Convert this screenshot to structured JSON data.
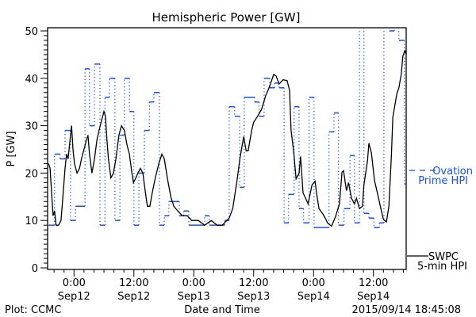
{
  "chart_data": {
    "type": "line",
    "title": "Hemispheric Power [GW]",
    "xlabel": "Date and Time",
    "ylabel": "P [GW]",
    "x_units": "hours since 2015-09-12 00:00",
    "xlim": [
      -5.1,
      66.6
    ],
    "ylim": [
      0,
      50
    ],
    "y_ticks": [
      "0",
      "10",
      "20",
      "30",
      "40",
      "50"
    ],
    "y_tick_values": [
      0,
      10,
      20,
      30,
      40,
      50
    ],
    "x_ticks": [
      {
        "h": 0,
        "time": "0:00",
        "date": "Sep12"
      },
      {
        "h": 12,
        "time": "12:00",
        "date": "Sep12"
      },
      {
        "h": 24,
        "time": "0:00",
        "date": "Sep13"
      },
      {
        "h": 36,
        "time": "12:00",
        "date": "Sep13"
      },
      {
        "h": 48,
        "time": "0:00",
        "date": "Sep14"
      },
      {
        "h": 60,
        "time": "12:00",
        "date": "Sep14"
      }
    ],
    "minor_x_tick_step_hours": 2,
    "grid": false,
    "colors": {
      "swpc": "#000000",
      "ovation": "#1a4fe6"
    },
    "legend": {
      "placement": "right",
      "ovation": [
        "Ovation",
        "Prime HPI"
      ],
      "swpc": [
        "SWPC",
        "5-min HPI"
      ]
    },
    "series": [
      {
        "name": "SWPC 5-min HPI",
        "style": "solid",
        "points": [
          [
            -5.1,
            22
          ],
          [
            -4.8,
            21
          ],
          [
            -4.5,
            16
          ],
          [
            -4.2,
            11
          ],
          [
            -3.9,
            12
          ],
          [
            -3.6,
            9
          ],
          [
            -3.1,
            9
          ],
          [
            -2.6,
            10
          ],
          [
            -2.3,
            14
          ],
          [
            -1.8,
            21
          ],
          [
            -1.5,
            24
          ],
          [
            -1.2,
            23
          ],
          [
            -0.8,
            27
          ],
          [
            -0.5,
            30
          ],
          [
            -0.2,
            25
          ],
          [
            0.1,
            22
          ],
          [
            0.6,
            20
          ],
          [
            1.1,
            21
          ],
          [
            1.5,
            23
          ],
          [
            2.0,
            25
          ],
          [
            2.5,
            27
          ],
          [
            2.8,
            28
          ],
          [
            3.1,
            24
          ],
          [
            3.6,
            20
          ],
          [
            4.1,
            23
          ],
          [
            4.6,
            27
          ],
          [
            5.0,
            29
          ],
          [
            5.5,
            31
          ],
          [
            6.0,
            33
          ],
          [
            6.3,
            32
          ],
          [
            6.6,
            27
          ],
          [
            6.9,
            23
          ],
          [
            7.4,
            19
          ],
          [
            7.9,
            20
          ],
          [
            8.4,
            23
          ],
          [
            9.0,
            28
          ],
          [
            9.5,
            30
          ],
          [
            10.1,
            29
          ],
          [
            10.6,
            26
          ],
          [
            11.1,
            24
          ],
          [
            11.6,
            20
          ],
          [
            11.9,
            18
          ],
          [
            12.4,
            19
          ],
          [
            12.8,
            20
          ],
          [
            13.3,
            21
          ],
          [
            13.8,
            20
          ],
          [
            14.3,
            16
          ],
          [
            14.7,
            13
          ],
          [
            15.2,
            13
          ],
          [
            15.7,
            16
          ],
          [
            16.3,
            19
          ],
          [
            17.0,
            22
          ],
          [
            17.6,
            24
          ],
          [
            18.1,
            23
          ],
          [
            18.7,
            19
          ],
          [
            19.4,
            15
          ],
          [
            20.0,
            13
          ],
          [
            20.8,
            12
          ],
          [
            21.7,
            11
          ],
          [
            22.7,
            11
          ],
          [
            23.6,
            10
          ],
          [
            24.9,
            10
          ],
          [
            26.2,
            9
          ],
          [
            27.5,
            10
          ],
          [
            28.7,
            9
          ],
          [
            29.7,
            9
          ],
          [
            31.1,
            10.5
          ],
          [
            31.8,
            12.5
          ],
          [
            32.6,
            18
          ],
          [
            33.3,
            23.5
          ],
          [
            34.0,
            27.7
          ],
          [
            34.5,
            24.7
          ],
          [
            34.9,
            24.7
          ],
          [
            35.6,
            29
          ],
          [
            36.0,
            30.7
          ],
          [
            36.8,
            32
          ],
          [
            37.6,
            33.5
          ],
          [
            38.4,
            36.3
          ],
          [
            39.2,
            38.3
          ],
          [
            40.0,
            40.8
          ],
          [
            40.5,
            40.5
          ],
          [
            41.1,
            38.8
          ],
          [
            41.9,
            39.7
          ],
          [
            42.7,
            39.5
          ],
          [
            43.2,
            37.5
          ],
          [
            43.5,
            29
          ],
          [
            44.0,
            24.7
          ],
          [
            44.5,
            18.8
          ],
          [
            45.1,
            20
          ],
          [
            45.4,
            23.5
          ],
          [
            45.9,
            15.8
          ],
          [
            46.4,
            14.7
          ],
          [
            46.9,
            13.5
          ],
          [
            47.7,
            17.5
          ],
          [
            48.3,
            18.3
          ],
          [
            48.6,
            15.8
          ],
          [
            49.1,
            12.5
          ],
          [
            49.9,
            11.3
          ],
          [
            50.5,
            10.2
          ],
          [
            50.8,
            9.5
          ],
          [
            51.6,
            8.8
          ],
          [
            52.4,
            10.8
          ],
          [
            53.2,
            13.5
          ],
          [
            53.7,
            20.2
          ],
          [
            54.0,
            20.5
          ],
          [
            54.6,
            16.3
          ],
          [
            55.0,
            18
          ],
          [
            55.6,
            14.7
          ],
          [
            56.2,
            13.5
          ],
          [
            56.6,
            14.7
          ],
          [
            57.2,
            12.5
          ],
          [
            57.8,
            13
          ],
          [
            58.1,
            17.5
          ],
          [
            58.8,
            22.5
          ],
          [
            59.1,
            26.3
          ],
          [
            59.6,
            24.2
          ],
          [
            60.2,
            18.5
          ],
          [
            60.8,
            15.8
          ],
          [
            61.5,
            12.5
          ],
          [
            62.0,
            10.2
          ],
          [
            62.6,
            9.7
          ],
          [
            63.1,
            13
          ],
          [
            63.6,
            23.5
          ],
          [
            63.9,
            31.8
          ],
          [
            64.7,
            36.8
          ],
          [
            65.1,
            38
          ],
          [
            65.6,
            41
          ],
          [
            65.9,
            44.7
          ],
          [
            66.3,
            45.8
          ],
          [
            66.6,
            45
          ]
        ]
      },
      {
        "name": "Ovation Prime HPI",
        "style": "step-dashed",
        "steps": [
          [
            -5.1,
            -3.9,
            9
          ],
          [
            -3.9,
            -2.8,
            24
          ],
          [
            -2.8,
            -1.8,
            23
          ],
          [
            -1.8,
            -0.7,
            29
          ],
          [
            -0.7,
            0.3,
            10
          ],
          [
            0.3,
            2.2,
            13
          ],
          [
            2.2,
            3.1,
            42
          ],
          [
            3.1,
            4.1,
            30
          ],
          [
            4.1,
            5.2,
            43
          ],
          [
            5.2,
            6.2,
            9
          ],
          [
            6.2,
            7.1,
            36
          ],
          [
            7.1,
            8.2,
            40
          ],
          [
            8.2,
            9.2,
            10
          ],
          [
            9.2,
            10.1,
            28
          ],
          [
            10.1,
            11.1,
            40
          ],
          [
            11.1,
            12.0,
            33
          ],
          [
            12.0,
            13.0,
            9
          ],
          [
            13.0,
            14.1,
            20
          ],
          [
            14.1,
            15.1,
            29
          ],
          [
            15.1,
            16.0,
            35
          ],
          [
            16.0,
            17.1,
            37
          ],
          [
            17.1,
            18.1,
            9
          ],
          [
            18.1,
            19.0,
            11
          ],
          [
            19.0,
            21.1,
            14
          ],
          [
            21.1,
            22.0,
            11
          ],
          [
            22.0,
            23.0,
            12
          ],
          [
            23.0,
            26.2,
            9
          ],
          [
            26.2,
            27.1,
            11
          ],
          [
            27.1,
            30.2,
            9
          ],
          [
            30.2,
            31.1,
            10
          ],
          [
            31.1,
            32.2,
            34
          ],
          [
            32.2,
            33.2,
            32
          ],
          [
            33.2,
            34.1,
            17
          ],
          [
            34.1,
            36.2,
            36
          ],
          [
            36.2,
            37.1,
            35
          ],
          [
            37.1,
            38.1,
            32
          ],
          [
            38.1,
            39.2,
            40
          ],
          [
            39.2,
            40.2,
            38
          ],
          [
            40.2,
            41.1,
            39
          ],
          [
            41.1,
            42.1,
            38
          ],
          [
            42.1,
            43.0,
            9.5
          ],
          [
            43.0,
            44.1,
            15.5
          ],
          [
            44.1,
            45.1,
            34
          ],
          [
            45.1,
            46.0,
            12.5
          ],
          [
            46.0,
            47.1,
            9.5
          ],
          [
            47.1,
            48.1,
            36
          ],
          [
            48.1,
            51.1,
            8.5
          ],
          [
            51.1,
            52.1,
            28.7
          ],
          [
            52.1,
            53.0,
            32.7
          ],
          [
            53.0,
            54.1,
            9
          ],
          [
            54.1,
            55.3,
            12.5
          ],
          [
            55.3,
            56.2,
            23.7
          ],
          [
            56.2,
            57.2,
            9.5
          ],
          [
            57.2,
            58.1,
            55
          ],
          [
            58.1,
            59.1,
            11.5
          ],
          [
            59.1,
            60.1,
            10.5
          ],
          [
            60.1,
            61.2,
            8.5
          ],
          [
            61.2,
            62.1,
            9.5
          ],
          [
            62.1,
            63.2,
            55
          ],
          [
            63.2,
            64.2,
            50
          ],
          [
            64.2,
            65.1,
            55
          ],
          [
            65.1,
            66.2,
            48
          ],
          [
            66.2,
            66.6,
            17.7
          ]
        ]
      }
    ]
  },
  "footer": {
    "plot_credit": "Plot: CCMC",
    "timestamp": "2015/09/14 18:45:08"
  }
}
